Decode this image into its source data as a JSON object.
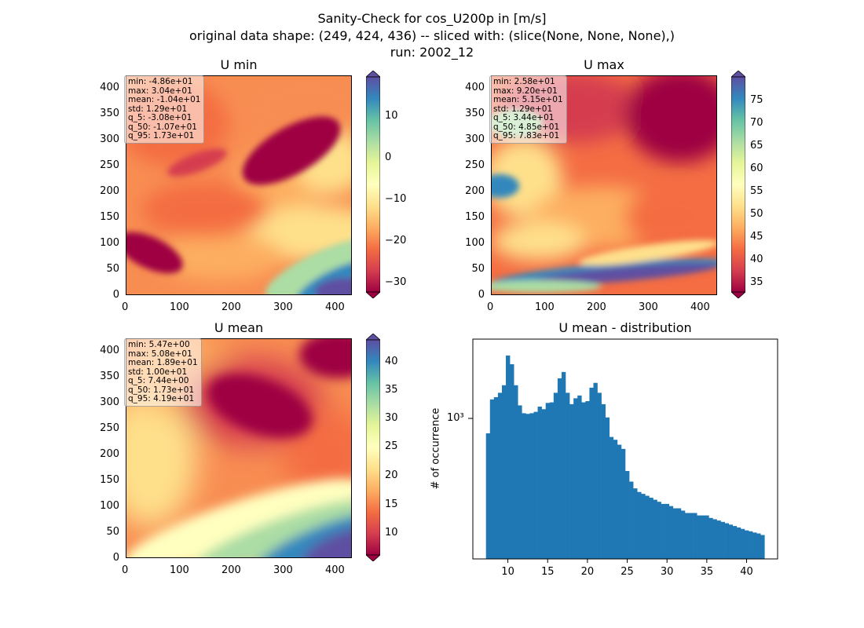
{
  "suptitle": {
    "line1": "Sanity-Check for cos_U200p in [m/s]",
    "line2": "original data shape: (249, 424, 436) -- sliced with: (slice(None, None, None),)",
    "line3": "run: 2002_12"
  },
  "colors": {
    "hist_bar": "#1f77b4",
    "colormap": "Spectral"
  },
  "panels": {
    "umin": {
      "title": "U min",
      "stats": [
        "min: -4.86e+01",
        "max: 3.04e+01",
        "mean: -1.04e+01",
        "std: 1.29e+01",
        "q_5: -3.08e+01",
        "q_50: -1.07e+01",
        "q_95: 1.73e+01"
      ],
      "xticks": [
        "0",
        "100",
        "200",
        "300",
        "400"
      ],
      "yticks": [
        "0",
        "50",
        "100",
        "150",
        "200",
        "250",
        "300",
        "350",
        "400"
      ],
      "cbar_ticks": [
        "−30",
        "−20",
        "−10",
        "0",
        "10"
      ]
    },
    "umax": {
      "title": "U max",
      "stats": [
        "min: 2.58e+01",
        "max: 9.20e+01",
        "mean: 5.15e+01",
        "std: 1.29e+01",
        "q_5: 3.44e+01",
        "q_50: 4.85e+01",
        "q_95: 7.83e+01"
      ],
      "xticks": [
        "0",
        "100",
        "200",
        "300",
        "400"
      ],
      "yticks": [
        "0",
        "50",
        "100",
        "150",
        "200",
        "250",
        "300",
        "350",
        "400"
      ],
      "cbar_ticks": [
        "35",
        "40",
        "45",
        "50",
        "55",
        "60",
        "65",
        "70",
        "75"
      ]
    },
    "umean": {
      "title": "U mean",
      "stats": [
        "min: 5.47e+00",
        "max: 5.08e+01",
        "mean: 1.89e+01",
        "std: 1.00e+01",
        "q_5: 7.44e+00",
        "q_50: 1.73e+01",
        "q_95: 4.19e+01"
      ],
      "xticks": [
        "0",
        "100",
        "200",
        "300",
        "400"
      ],
      "yticks": [
        "0",
        "50",
        "100",
        "150",
        "200",
        "250",
        "300",
        "350",
        "400"
      ],
      "cbar_ticks": [
        "10",
        "15",
        "20",
        "25",
        "30",
        "35",
        "40"
      ]
    },
    "hist": {
      "title": "U mean - distribution",
      "ylabel": "# of occurrence",
      "ytick_label": "10³",
      "xticks": [
        "10",
        "15",
        "20",
        "25",
        "30",
        "35",
        "40"
      ]
    }
  },
  "chart_data": [
    {
      "type": "heatmap",
      "title": "U min",
      "xlim": [
        0,
        436
      ],
      "ylim": [
        0,
        424
      ],
      "colorbar_range": [
        -33,
        18
      ],
      "colormap": "Spectral"
    },
    {
      "type": "heatmap",
      "title": "U max",
      "xlim": [
        0,
        436
      ],
      "ylim": [
        0,
        424
      ],
      "colorbar_range": [
        33,
        79
      ],
      "colormap": "Spectral"
    },
    {
      "type": "heatmap",
      "title": "U mean",
      "xlim": [
        0,
        436
      ],
      "ylim": [
        0,
        424
      ],
      "colorbar_range": [
        7,
        43
      ],
      "colormap": "Spectral"
    },
    {
      "type": "bar",
      "title": "U mean - distribution",
      "ylabel": "# of occurrence",
      "yscale": "log",
      "xlim": [
        5.6,
        43.9
      ],
      "x": [
        7.5,
        8.0,
        8.5,
        9.0,
        9.5,
        10.0,
        10.5,
        11.0,
        11.5,
        12.0,
        12.5,
        13.0,
        13.5,
        14.0,
        14.5,
        15.0,
        15.5,
        16.0,
        16.5,
        17.0,
        17.5,
        18.0,
        18.5,
        19.0,
        19.5,
        20.0,
        20.5,
        21.0,
        21.5,
        22.0,
        22.5,
        23.0,
        23.5,
        24.0,
        24.5,
        25.0,
        25.5,
        26.0,
        26.5,
        27.0,
        27.5,
        28.0,
        28.5,
        29.0,
        29.5,
        30.0,
        30.5,
        31.0,
        31.5,
        32.0,
        32.5,
        33.0,
        33.5,
        34.0,
        34.5,
        35.0,
        35.5,
        36.0,
        36.5,
        37.0,
        37.5,
        38.0,
        38.5,
        39.0,
        39.5,
        40.0,
        40.5,
        41.0,
        41.5,
        42.0
      ],
      "values": [
        900,
        1380,
        1420,
        1500,
        1650,
        2400,
        2150,
        1650,
        1280,
        1160,
        1150,
        1160,
        1180,
        1260,
        1220,
        1320,
        1330,
        1500,
        1800,
        1950,
        1500,
        1300,
        1400,
        1450,
        1330,
        1350,
        1600,
        1700,
        1500,
        1300,
        1100,
        860,
        830,
        780,
        740,
        560,
        490,
        450,
        430,
        420,
        410,
        400,
        390,
        380,
        370,
        370,
        360,
        350,
        350,
        340,
        330,
        330,
        330,
        320,
        320,
        320,
        310,
        305,
        300,
        295,
        290,
        285,
        280,
        275,
        270,
        265,
        262,
        258,
        255,
        250
      ]
    }
  ]
}
